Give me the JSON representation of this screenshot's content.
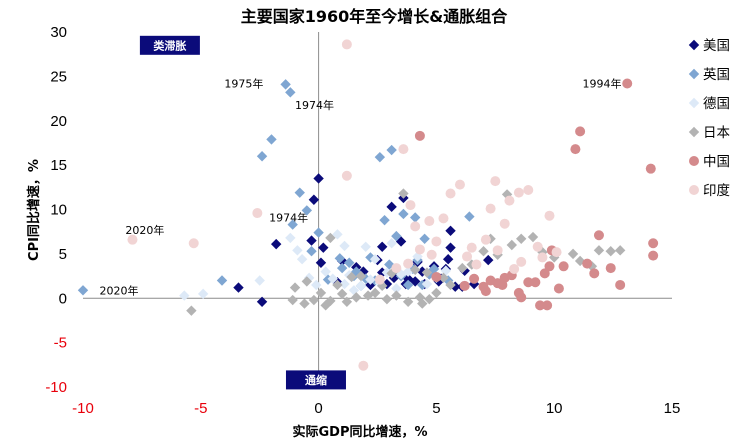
{
  "chart_data": {
    "type": "scatter",
    "title": "主要国家1960年至今增长&通胀组合",
    "xlabel": "实际GDP同比增速，%",
    "ylabel": "CPI同比增速，%",
    "xlim": [
      -10,
      15
    ],
    "ylim": [
      -10,
      30
    ],
    "xticks": [
      "-10",
      "-5",
      "0",
      "5",
      "10",
      "15"
    ],
    "yticks": [
      "-10",
      "-5",
      "0",
      "5",
      "10",
      "15",
      "20",
      "25",
      "30"
    ],
    "negative_tick_color": "#e8000b",
    "legend_position": "right",
    "grid": false,
    "quadrant_labels": [
      {
        "text": "类滞胀",
        "x": -7.5,
        "y": 28.5
      },
      {
        "text": "通缩",
        "x": -1.3,
        "y": -9.2
      }
    ],
    "annotations": [
      {
        "text": "1975年",
        "x": -4.0,
        "y": 24.2
      },
      {
        "text": "1974年",
        "x": -1.0,
        "y": 21.8
      },
      {
        "text": "1994年",
        "x": 11.2,
        "y": 24.2
      },
      {
        "text": "2020年",
        "x": -8.2,
        "y": 7.7
      },
      {
        "text": "1974年",
        "x": -2.1,
        "y": 9.1
      },
      {
        "text": "2020年",
        "x": -9.3,
        "y": 0.9
      }
    ],
    "series": [
      {
        "name": "美国",
        "marker": "diamond",
        "color": "#0b0b7a",
        "points": [
          [
            -3.4,
            1.2
          ],
          [
            -2.4,
            -0.4
          ],
          [
            -1.8,
            6.1
          ],
          [
            -0.3,
            6.5
          ],
          [
            -0.2,
            11.1
          ],
          [
            0.0,
            13.5
          ],
          [
            0.1,
            4.0
          ],
          [
            0.2,
            5.7
          ],
          [
            0.8,
            1.8
          ],
          [
            1.0,
            4.2
          ],
          [
            1.6,
            3.5
          ],
          [
            1.9,
            3.0
          ],
          [
            2.2,
            1.5
          ],
          [
            2.5,
            4.3
          ],
          [
            2.7,
            5.8
          ],
          [
            2.7,
            2.9
          ],
          [
            2.9,
            1.6
          ],
          [
            3.1,
            10.3
          ],
          [
            3.2,
            2.3
          ],
          [
            3.3,
            3.1
          ],
          [
            3.5,
            6.4
          ],
          [
            3.6,
            11.3
          ],
          [
            3.7,
            1.6
          ],
          [
            3.8,
            2.2
          ],
          [
            4.0,
            3.4
          ],
          [
            4.1,
            1.9
          ],
          [
            4.2,
            4.1
          ],
          [
            4.4,
            3.0
          ],
          [
            4.5,
            1.6
          ],
          [
            4.7,
            2.7
          ],
          [
            4.9,
            3.6
          ],
          [
            5.1,
            1.9
          ],
          [
            5.2,
            2.2
          ],
          [
            5.4,
            3.3
          ],
          [
            5.5,
            4.4
          ],
          [
            5.6,
            5.7
          ],
          [
            5.6,
            7.6
          ],
          [
            5.8,
            1.3
          ],
          [
            6.1,
            1.3
          ],
          [
            6.2,
            3.1
          ],
          [
            6.6,
            1.6
          ],
          [
            7.2,
            4.3
          ]
        ]
      },
      {
        "name": "英国",
        "marker": "diamond",
        "color": "#7fa6d2",
        "points": [
          [
            -10.0,
            0.9
          ],
          [
            -4.1,
            2.0
          ],
          [
            -2.4,
            16.0
          ],
          [
            -2.0,
            17.9
          ],
          [
            -1.4,
            24.1
          ],
          [
            -1.2,
            23.2
          ],
          [
            -1.1,
            8.3
          ],
          [
            -0.8,
            11.9
          ],
          [
            -0.5,
            9.9
          ],
          [
            -0.3,
            5.3
          ],
          [
            0.0,
            7.4
          ],
          [
            0.4,
            2.1
          ],
          [
            0.9,
            4.5
          ],
          [
            1.0,
            3.4
          ],
          [
            1.3,
            4.0
          ],
          [
            1.5,
            2.5
          ],
          [
            1.6,
            3.0
          ],
          [
            1.8,
            1.4
          ],
          [
            2.0,
            2.2
          ],
          [
            2.2,
            4.6
          ],
          [
            2.4,
            2.0
          ],
          [
            2.6,
            15.9
          ],
          [
            2.8,
            8.8
          ],
          [
            3.0,
            3.8
          ],
          [
            3.1,
            16.7
          ],
          [
            3.3,
            7.0
          ],
          [
            3.5,
            2.5
          ],
          [
            3.6,
            9.5
          ],
          [
            3.8,
            1.5
          ],
          [
            4.0,
            3.3
          ],
          [
            4.1,
            9.1
          ],
          [
            4.2,
            4.3
          ],
          [
            4.4,
            1.5
          ],
          [
            4.5,
            6.7
          ],
          [
            4.7,
            2.7
          ],
          [
            4.9,
            3.3
          ],
          [
            5.5,
            2.0
          ],
          [
            6.4,
            9.2
          ]
        ]
      },
      {
        "name": "德国",
        "marker": "diamond",
        "color": "#dde9f7",
        "points": [
          [
            -5.7,
            0.3
          ],
          [
            -4.9,
            0.5
          ],
          [
            -2.5,
            2.0
          ],
          [
            -1.2,
            6.8
          ],
          [
            -0.9,
            5.4
          ],
          [
            -0.7,
            4.4
          ],
          [
            -0.4,
            2.3
          ],
          [
            -0.1,
            1.5
          ],
          [
            0.3,
            3.0
          ],
          [
            0.6,
            2.2
          ],
          [
            0.8,
            7.2
          ],
          [
            1.1,
            1.6
          ],
          [
            1.1,
            5.9
          ],
          [
            1.3,
            2.6
          ],
          [
            1.5,
            0.9
          ],
          [
            1.8,
            1.4
          ],
          [
            2.0,
            5.8
          ],
          [
            2.2,
            2.1
          ],
          [
            2.4,
            4.4
          ],
          [
            2.6,
            1.7
          ],
          [
            2.9,
            2.9
          ],
          [
            3.1,
            6.2
          ],
          [
            3.3,
            1.1
          ],
          [
            3.5,
            2.7
          ],
          [
            3.8,
            3.0
          ],
          [
            4.2,
            4.7
          ],
          [
            4.6,
            1.6
          ],
          [
            5.0,
            2.3
          ],
          [
            5.4,
            3.1
          ]
        ]
      },
      {
        "name": "日本",
        "marker": "diamond",
        "color": "#b3b3b3",
        "points": [
          [
            -5.4,
            -1.4
          ],
          [
            -1.1,
            -0.2
          ],
          [
            -1.0,
            1.2
          ],
          [
            -0.6,
            -0.6
          ],
          [
            -0.5,
            1.9
          ],
          [
            -0.2,
            -0.2
          ],
          [
            0.1,
            0.6
          ],
          [
            0.3,
            -0.8
          ],
          [
            0.5,
            -0.3
          ],
          [
            0.5,
            6.8
          ],
          [
            0.8,
            1.5
          ],
          [
            1.0,
            0.5
          ],
          [
            1.2,
            -0.4
          ],
          [
            1.4,
            2.4
          ],
          [
            1.6,
            0.1
          ],
          [
            1.8,
            2.5
          ],
          [
            2.1,
            0.3
          ],
          [
            2.4,
            0.6
          ],
          [
            2.7,
            1.4
          ],
          [
            2.9,
            -0.1
          ],
          [
            3.1,
            2.8
          ],
          [
            3.3,
            0.3
          ],
          [
            3.6,
            11.8
          ],
          [
            3.8,
            -0.4
          ],
          [
            4.1,
            3.2
          ],
          [
            4.3,
            0.1
          ],
          [
            4.4,
            -0.6
          ],
          [
            4.6,
            2.9
          ],
          [
            4.7,
            -0.1
          ],
          [
            5.0,
            0.6
          ],
          [
            5.3,
            2.3
          ],
          [
            5.6,
            1.5
          ],
          [
            6.1,
            3.4
          ],
          [
            6.5,
            3.8
          ],
          [
            7.0,
            5.3
          ],
          [
            7.3,
            6.7
          ],
          [
            7.6,
            4.9
          ],
          [
            8.0,
            11.7
          ],
          [
            8.2,
            6.0
          ],
          [
            8.6,
            6.7
          ],
          [
            9.1,
            6.9
          ],
          [
            9.5,
            5.2
          ],
          [
            10.0,
            4.6
          ],
          [
            10.8,
            5.0
          ],
          [
            11.1,
            4.2
          ],
          [
            11.6,
            3.6
          ],
          [
            11.9,
            5.4
          ],
          [
            12.4,
            5.3
          ],
          [
            12.8,
            5.4
          ]
        ]
      },
      {
        "name": "中国",
        "marker": "circle",
        "color": "#d48a8c",
        "points": [
          [
            4.3,
            18.3
          ],
          [
            5.0,
            2.4
          ],
          [
            6.2,
            1.4
          ],
          [
            6.6,
            2.2
          ],
          [
            7.0,
            1.3
          ],
          [
            7.1,
            0.8
          ],
          [
            7.3,
            2.0
          ],
          [
            7.6,
            1.7
          ],
          [
            7.8,
            1.5
          ],
          [
            7.9,
            2.3
          ],
          [
            8.2,
            2.6
          ],
          [
            8.5,
            0.6
          ],
          [
            8.6,
            0.1
          ],
          [
            8.9,
            1.8
          ],
          [
            9.2,
            1.8
          ],
          [
            9.4,
            -0.8
          ],
          [
            9.6,
            2.8
          ],
          [
            9.7,
            -0.8
          ],
          [
            9.8,
            3.6
          ],
          [
            9.9,
            5.4
          ],
          [
            10.2,
            1.1
          ],
          [
            10.4,
            3.6
          ],
          [
            10.9,
            16.8
          ],
          [
            11.1,
            18.8
          ],
          [
            11.4,
            3.9
          ],
          [
            11.7,
            2.8
          ],
          [
            11.9,
            7.1
          ],
          [
            12.4,
            3.4
          ],
          [
            12.8,
            1.5
          ],
          [
            13.1,
            24.2
          ],
          [
            14.1,
            14.6
          ],
          [
            14.2,
            6.2
          ],
          [
            14.2,
            4.8
          ]
        ]
      },
      {
        "name": "印度",
        "marker": "circle",
        "color": "#f1d4d4",
        "points": [
          [
            -7.9,
            6.6
          ],
          [
            -5.3,
            6.2
          ],
          [
            -2.6,
            9.6
          ],
          [
            1.2,
            28.6
          ],
          [
            1.2,
            13.8
          ],
          [
            1.9,
            -7.6
          ],
          [
            2.6,
            2.1
          ],
          [
            3.3,
            3.4
          ],
          [
            3.6,
            16.8
          ],
          [
            3.8,
            3.9
          ],
          [
            3.9,
            10.5
          ],
          [
            4.1,
            8.1
          ],
          [
            4.3,
            5.5
          ],
          [
            4.7,
            8.7
          ],
          [
            4.8,
            4.9
          ],
          [
            5.0,
            6.4
          ],
          [
            5.3,
            9.0
          ],
          [
            5.6,
            11.8
          ],
          [
            6.0,
            12.8
          ],
          [
            6.3,
            4.7
          ],
          [
            6.5,
            5.7
          ],
          [
            6.7,
            3.8
          ],
          [
            7.1,
            6.6
          ],
          [
            7.3,
            10.1
          ],
          [
            7.5,
            13.2
          ],
          [
            7.6,
            5.4
          ],
          [
            7.9,
            8.4
          ],
          [
            8.1,
            11.0
          ],
          [
            8.3,
            3.3
          ],
          [
            8.5,
            11.9
          ],
          [
            8.6,
            4.1
          ],
          [
            8.9,
            12.2
          ],
          [
            9.3,
            5.8
          ],
          [
            9.5,
            4.6
          ],
          [
            9.8,
            9.3
          ],
          [
            10.1,
            5.2
          ]
        ]
      }
    ]
  }
}
